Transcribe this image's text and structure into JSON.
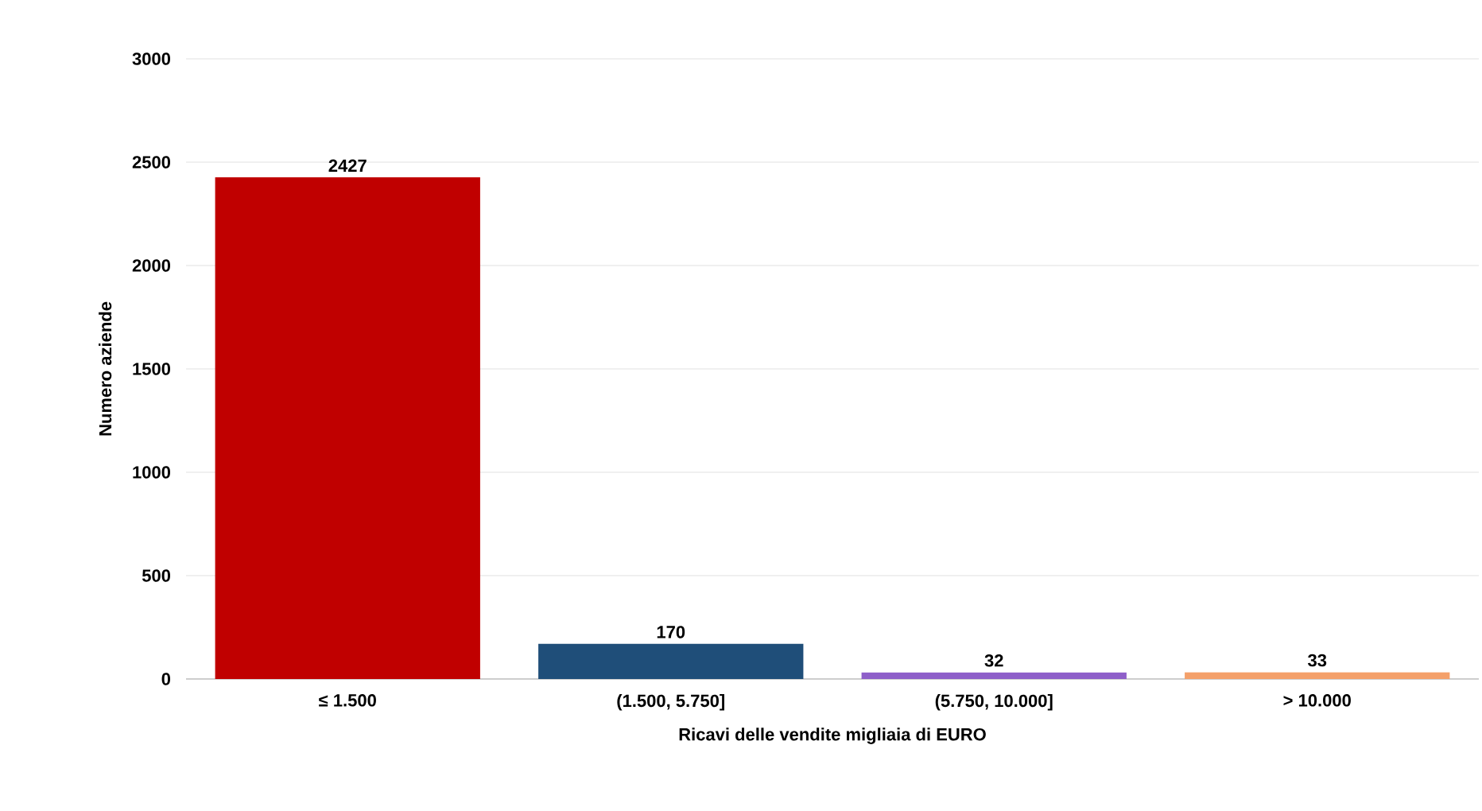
{
  "chart_data": {
    "type": "bar",
    "xlabel": "Ricavi delle vendite migliaia di EURO",
    "ylabel": "Numero aziende",
    "categories": [
      "≤ 1.500",
      "(1.500, 5.750]",
      "(5.750, 10.000]",
      "> 10.000"
    ],
    "values": [
      2427,
      170,
      32,
      33
    ],
    "colors": [
      "#c00000",
      "#1f4e79",
      "#8e5fc9",
      "#f4a06a"
    ],
    "ylim": [
      0,
      3000
    ],
    "yticks": [
      0,
      500,
      1000,
      1500,
      2000,
      2500,
      3000
    ],
    "grid": "y",
    "data_labels": true
  }
}
